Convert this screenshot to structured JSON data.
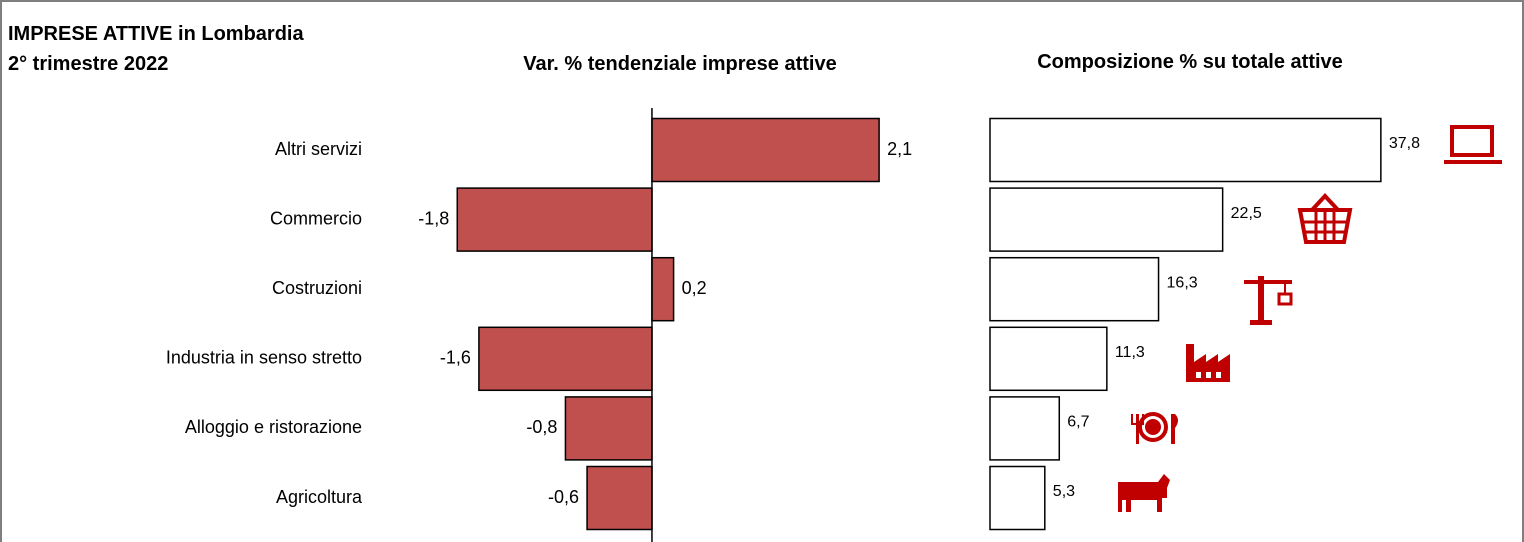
{
  "header": {
    "title": "IMPRESE ATTIVE in Lombardia",
    "subtitle": "2° trimestre 2022"
  },
  "chart_data": [
    {
      "type": "hbar",
      "title": "Var. % tendenziale imprese attive",
      "categories": [
        "Altri servizi",
        "Commercio",
        "Costruzioni",
        "Industria in senso stretto",
        "Alloggio e ristorazione",
        "Agricoltura"
      ],
      "values": [
        2.1,
        -1.8,
        0.2,
        -1.6,
        -0.8,
        -0.6
      ],
      "value_labels": [
        "2,1",
        "-1,8",
        "0,2",
        "-1,6",
        "-0,8",
        "-0,6"
      ],
      "color": "#c0504d",
      "xlim": [
        -2.2,
        2.7
      ]
    },
    {
      "type": "hbar",
      "title": "Composizione % su totale attive",
      "values": [
        37.8,
        22.5,
        16.3,
        11.3,
        6.7,
        5.3
      ],
      "value_labels": [
        "37,8",
        "22,5",
        "16,3",
        "11,3",
        "6,7",
        "5,3"
      ],
      "color": "#ffffff",
      "xlim": [
        0,
        50
      ]
    }
  ]
}
